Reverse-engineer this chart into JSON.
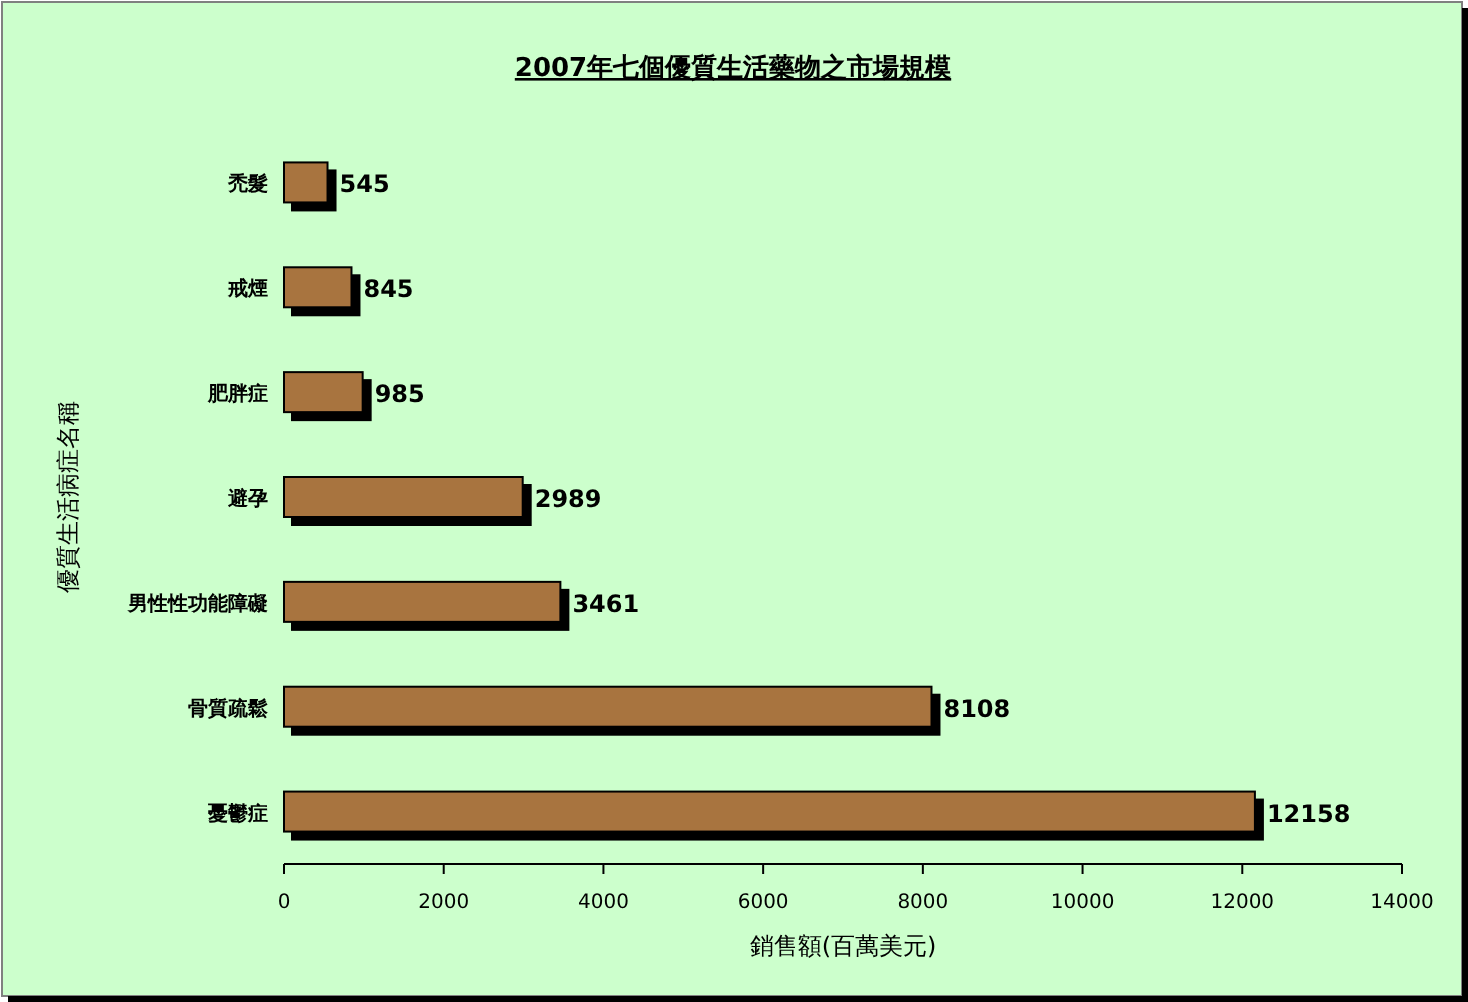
{
  "chart_data": {
    "type": "bar",
    "orientation": "horizontal",
    "title": "2007年七個優質生活藥物之市場規模",
    "xlabel": "銷售額(百萬美元)",
    "ylabel": "優質生活病症名稱",
    "categories": [
      "禿髮",
      "戒煙",
      "肥胖症",
      "避孕",
      "男性性功能障礙",
      "骨質疏鬆",
      "憂鬱症"
    ],
    "values": [
      545,
      845,
      985,
      2989,
      3461,
      8108,
      12158
    ],
    "color": "#a8743f",
    "data_labels": true,
    "xlim": [
      0,
      14000
    ],
    "xticks": [
      0,
      2000,
      4000,
      6000,
      8000,
      10000,
      12000,
      14000
    ],
    "grid": false
  }
}
